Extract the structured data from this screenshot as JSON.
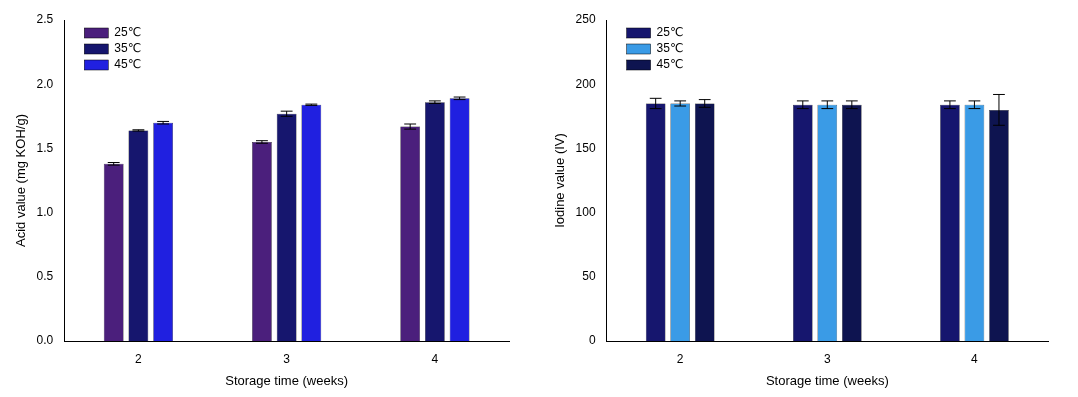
{
  "chart_data": [
    {
      "type": "bar",
      "x_label": "Storage time (weeks)",
      "y_label": "Acid value (mg KOH/g)",
      "categories": [
        "2",
        "3",
        "4"
      ],
      "series": [
        {
          "name": "25℃",
          "color": "#4b1f7c",
          "values": [
            1.38,
            1.55,
            1.67
          ],
          "errors": [
            0.01,
            0.01,
            0.02
          ]
        },
        {
          "name": "35℃",
          "color": "#16166e",
          "values": [
            1.64,
            1.77,
            1.86
          ],
          "errors": [
            0.005,
            0.02,
            0.01
          ]
        },
        {
          "name": "45℃",
          "color": "#2020e0",
          "values": [
            1.7,
            1.84,
            1.89
          ],
          "errors": [
            0.01,
            0.005,
            0.01
          ]
        }
      ],
      "ylim": [
        0,
        2.5
      ],
      "yticks": [
        {
          "value": 0,
          "label": "0.0"
        },
        0.5,
        {
          "value": 1,
          "label": "1.0"
        },
        1.5,
        {
          "value": 2,
          "label": "2.0"
        },
        2.5
      ],
      "grid": false,
      "legend": "upper left"
    },
    {
      "type": "bar",
      "x_label": "Storage time (weeks)",
      "y_label": "Iodine value (IV)",
      "categories": [
        "2",
        "3",
        "4"
      ],
      "series": [
        {
          "name": "25℃",
          "color": "#16166e",
          "values": [
            185,
            184,
            184
          ],
          "errors": [
            4,
            3,
            3
          ]
        },
        {
          "name": "35℃",
          "color": "#3a9be6",
          "values": [
            185,
            184,
            184
          ],
          "errors": [
            2,
            3,
            3
          ]
        },
        {
          "name": "45℃",
          "color": "#0e1450",
          "values": [
            185,
            184,
            180
          ],
          "errors": [
            3,
            3,
            12
          ]
        }
      ],
      "ylim": [
        0,
        250
      ],
      "yticks": [
        0,
        50,
        100,
        150,
        200,
        250
      ],
      "grid": false,
      "legend": "upper left"
    }
  ]
}
